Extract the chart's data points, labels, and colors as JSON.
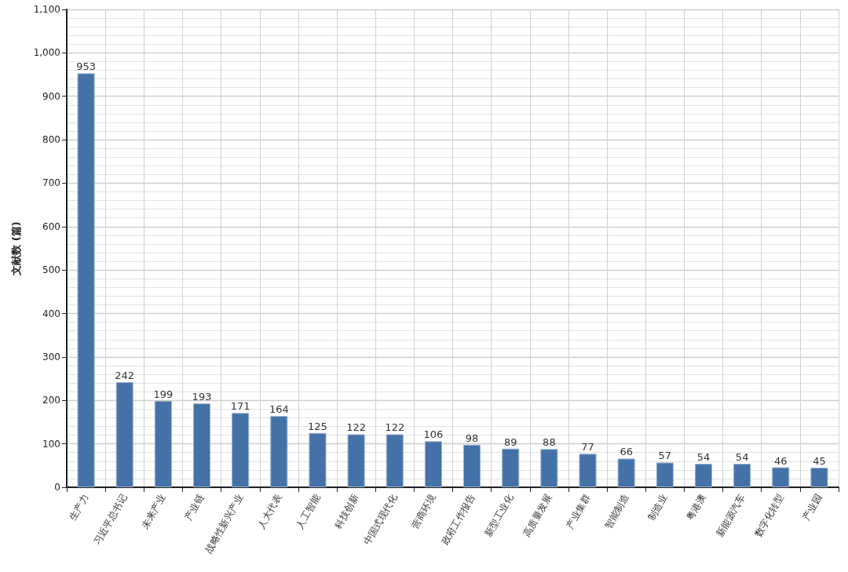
{
  "chart_data": {
    "type": "bar",
    "ylabel": "文献数 (篇)",
    "categories": [
      "生产力",
      "习近平总书记",
      "未来产业",
      "产业链",
      "战略性新兴产业",
      "人大代表",
      "人工智能",
      "科技创新",
      "中国式现代化",
      "营商环境",
      "政府工作报告",
      "新型工业化",
      "高质量发展",
      "产业集群",
      "智能制造",
      "制造业",
      "粤港澳",
      "新能源汽车",
      "数字化转型",
      "产业园"
    ],
    "values": [
      953,
      242,
      199,
      193,
      171,
      164,
      125,
      122,
      122,
      106,
      98,
      89,
      88,
      77,
      66,
      57,
      54,
      54,
      46,
      45
    ],
    "color": "#4472a8",
    "ylim": [
      0,
      1100
    ],
    "yticks": [
      0,
      100,
      200,
      300,
      400,
      500,
      600,
      700,
      800,
      900,
      {
        "value": 1000,
        "label": "1,000"
      },
      {
        "value": 1100,
        "label": "1,100"
      }
    ],
    "grid": true,
    "data_labels": true
  }
}
